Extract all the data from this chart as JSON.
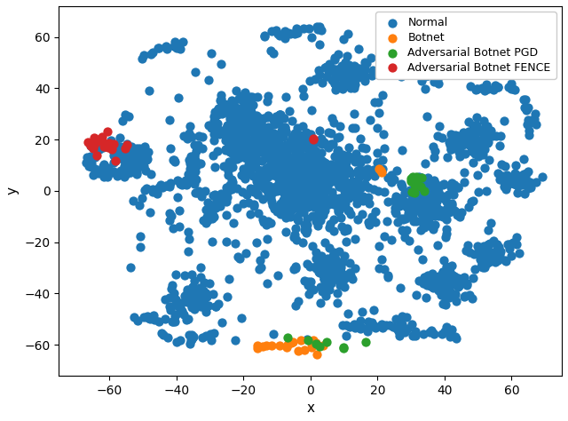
{
  "xlabel": "x",
  "ylabel": "y",
  "xlim": [
    -75,
    75
  ],
  "ylim": [
    -72,
    72
  ],
  "normal_color": "#1f77b4",
  "botnet_color": "#ff7f0e",
  "pgd_color": "#2ca02c",
  "fence_color": "#d62728",
  "marker_size": 55,
  "legend_labels": [
    "Normal",
    "Botnet",
    "Adversarial Botnet PGD",
    "Adversarial Botnet FENCE"
  ]
}
